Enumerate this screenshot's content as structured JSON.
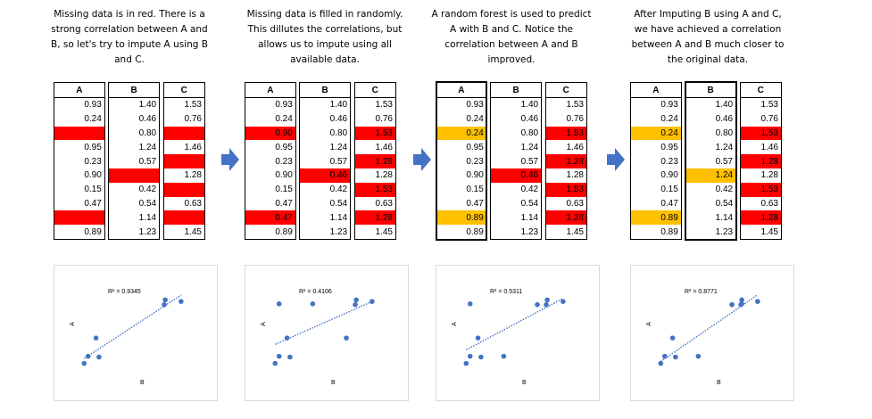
{
  "panels": [
    {
      "caption": "Missing data is in red. There is a strong correlation between A and B, so let's try to impute A using B and C.",
      "headers": [
        "A",
        "B",
        "C"
      ],
      "rows": [
        [
          "0.93",
          "1.40",
          "1.53"
        ],
        [
          "0.24",
          "0.46",
          "0.76"
        ],
        [
          "",
          "0.80",
          ""
        ],
        [
          "0.95",
          "1.24",
          "1.46"
        ],
        [
          "0.23",
          "0.57",
          ""
        ],
        [
          "0.90",
          "",
          "1.28"
        ],
        [
          "0.15",
          "0.42",
          ""
        ],
        [
          "0.47",
          "0.54",
          "0.63"
        ],
        [
          "",
          "1.14",
          ""
        ],
        [
          "0.89",
          "1.23",
          "1.45"
        ]
      ],
      "red_cells": [
        "2-0",
        "2-2",
        "4-2",
        "5-1",
        "6-2",
        "8-0",
        "8-2"
      ],
      "orange_cells": [],
      "outlined_column": null,
      "chart": {
        "r2": "R² = 0.9345",
        "xlabel": "B",
        "ylabel": "A"
      }
    },
    {
      "caption": "Missing data is filled in randomly. This dillutes the correlations, but allows us to impute using all available data.",
      "headers": [
        "A",
        "B",
        "C"
      ],
      "rows": [
        [
          "0.93",
          "1.40",
          "1.53"
        ],
        [
          "0.24",
          "0.46",
          "0.76"
        ],
        [
          "0.90",
          "0.80",
          "1.53"
        ],
        [
          "0.95",
          "1.24",
          "1.46"
        ],
        [
          "0.23",
          "0.57",
          "1.28"
        ],
        [
          "0.90",
          "0.46",
          "1.28"
        ],
        [
          "0.15",
          "0.42",
          "1.53"
        ],
        [
          "0.47",
          "0.54",
          "0.63"
        ],
        [
          "0.47",
          "1.14",
          "1.28"
        ],
        [
          "0.89",
          "1.23",
          "1.45"
        ]
      ],
      "red_cells": [
        "2-0",
        "2-2",
        "4-2",
        "5-1",
        "6-2",
        "8-0",
        "8-2"
      ],
      "orange_cells": [],
      "outlined_column": null,
      "chart": {
        "r2": "R² = 0.4106",
        "xlabel": "B",
        "ylabel": "A"
      }
    },
    {
      "caption": "A random forest is used to predict A with B and C. Notice the correlation between A and B improved.",
      "headers": [
        "A",
        "B",
        "C"
      ],
      "rows": [
        [
          "0.93",
          "1.40",
          "1.53"
        ],
        [
          "0.24",
          "0.46",
          "0.76"
        ],
        [
          "0.24",
          "0.80",
          "1.53"
        ],
        [
          "0.95",
          "1.24",
          "1.46"
        ],
        [
          "0.23",
          "0.57",
          "1.28"
        ],
        [
          "0.90",
          "0.46",
          "1.28"
        ],
        [
          "0.15",
          "0.42",
          "1.53"
        ],
        [
          "0.47",
          "0.54",
          "0.63"
        ],
        [
          "0.89",
          "1.14",
          "1.28"
        ],
        [
          "0.89",
          "1.23",
          "1.45"
        ]
      ],
      "red_cells": [
        "2-2",
        "4-2",
        "5-1",
        "6-2",
        "8-2"
      ],
      "orange_cells": [
        "2-0",
        "8-0"
      ],
      "outlined_column": "A",
      "chart": {
        "r2": "R² = 0.5311",
        "xlabel": "B",
        "ylabel": "A"
      }
    },
    {
      "caption": "After Imputing B using A and C, we have achieved a correlation between A and B much closer to the original data.",
      "headers": [
        "A",
        "B",
        "C"
      ],
      "rows": [
        [
          "0.93",
          "1.40",
          "1.53"
        ],
        [
          "0.24",
          "0.46",
          "0.76"
        ],
        [
          "0.24",
          "0.80",
          "1.53"
        ],
        [
          "0.95",
          "1.24",
          "1.46"
        ],
        [
          "0.23",
          "0.57",
          "1.28"
        ],
        [
          "0.90",
          "1.24",
          "1.28"
        ],
        [
          "0.15",
          "0.42",
          "1.53"
        ],
        [
          "0.47",
          "0.54",
          "0.63"
        ],
        [
          "0.89",
          "1.14",
          "1.28"
        ],
        [
          "0.89",
          "1.23",
          "1.45"
        ]
      ],
      "red_cells": [
        "2-2",
        "4-2",
        "6-2",
        "8-2"
      ],
      "orange_cells": [
        "2-0",
        "5-1",
        "8-0"
      ],
      "outlined_column": "B",
      "chart": {
        "r2": "R² = 0.8771",
        "xlabel": "B",
        "ylabel": "A"
      }
    }
  ],
  "colors": {
    "missing": "#ff0000",
    "imputed": "#ffc000",
    "points": "#4472c4",
    "arrow": "#4472c4"
  },
  "icons": {
    "arrow": "right-arrow-icon"
  }
}
